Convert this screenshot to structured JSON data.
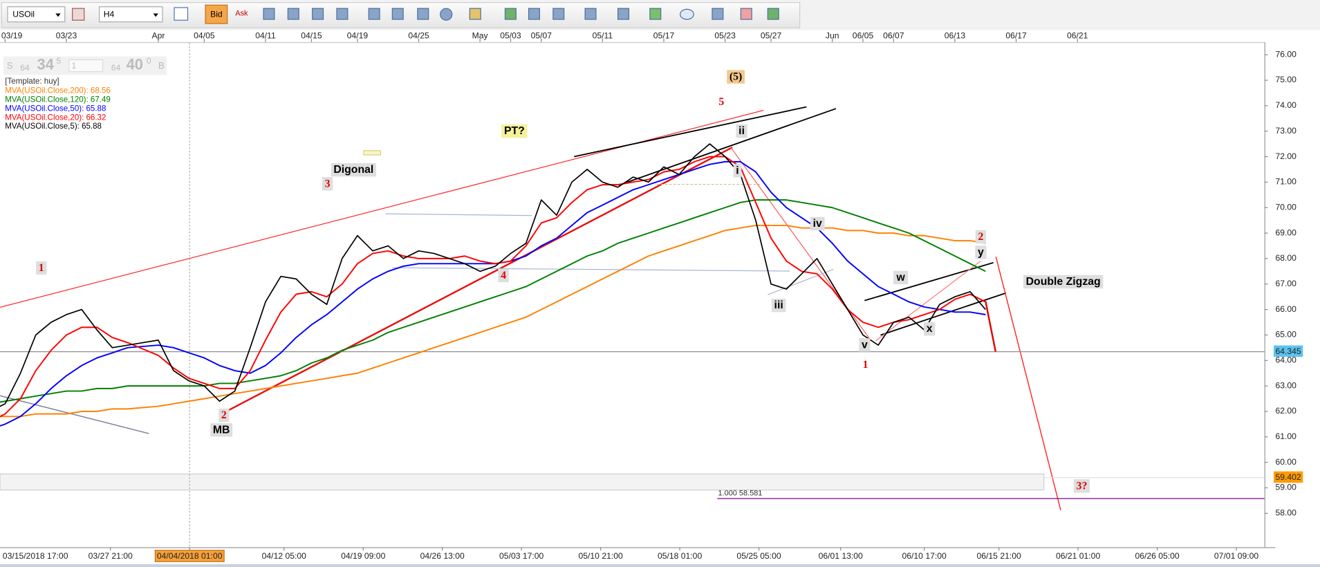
{
  "toolbar": {
    "symbol": "USOil",
    "timeframe": "H4",
    "bid": "Bid",
    "ask": "Ask"
  },
  "quote": {
    "sell_label": "S",
    "sell_big": "64",
    "sell_pips": "34",
    "sell_frac": "5",
    "amount": "1",
    "buy_big": "64",
    "buy_pips": "40",
    "buy_frac": "0",
    "buy_label": "B"
  },
  "chart_data": {
    "type": "line",
    "template": "[Template: huy]",
    "x": [
      "2018-03-16",
      "2018-03-19",
      "2018-03-20",
      "2018-03-21",
      "2018-03-22",
      "2018-03-23",
      "2018-03-26",
      "2018-03-27",
      "2018-03-28",
      "2018-03-29",
      "2018-04-02",
      "2018-04-03",
      "2018-04-04",
      "2018-04-05",
      "2018-04-06",
      "2018-04-09",
      "2018-04-10",
      "2018-04-11",
      "2018-04-12",
      "2018-04-13",
      "2018-04-16",
      "2018-04-17",
      "2018-04-18",
      "2018-04-19",
      "2018-04-20",
      "2018-04-23",
      "2018-04-24",
      "2018-04-25",
      "2018-04-26",
      "2018-04-27",
      "2018-04-30",
      "2018-05-01",
      "2018-05-02",
      "2018-05-03",
      "2018-05-04",
      "2018-05-07",
      "2018-05-08",
      "2018-05-09",
      "2018-05-10",
      "2018-05-11",
      "2018-05-14",
      "2018-05-15",
      "2018-05-16",
      "2018-05-17",
      "2018-05-18",
      "2018-05-21",
      "2018-05-22",
      "2018-05-23",
      "2018-05-24",
      "2018-05-25",
      "2018-05-28",
      "2018-05-29",
      "2018-05-30",
      "2018-05-31",
      "2018-06-01",
      "2018-06-04",
      "2018-06-05",
      "2018-06-06",
      "2018-06-07",
      "2018-06-08",
      "2018-06-11",
      "2018-06-12",
      "2018-06-13",
      "2018-06-14",
      "2018-06-15"
    ],
    "series": [
      {
        "name": "MVA(USOil.Close,200): 68.56",
        "color": "#ff8000",
        "values": [
          61.8,
          61.8,
          61.8,
          61.9,
          61.9,
          61.9,
          62.0,
          62.0,
          62.1,
          62.1,
          62.2,
          62.3,
          62.4,
          62.5,
          62.6,
          62.7,
          62.8,
          62.9,
          63.0,
          63.1,
          63.2,
          63.3,
          63.4,
          63.5,
          63.7,
          63.9,
          64.1,
          64.3,
          64.5,
          64.7,
          64.9,
          65.1,
          65.3,
          65.5,
          65.7,
          66.0,
          66.3,
          66.6,
          66.9,
          67.2,
          67.5,
          67.8,
          68.1,
          68.3,
          68.5,
          68.7,
          68.9,
          69.1,
          69.2,
          69.3,
          69.3,
          69.3,
          69.2,
          69.2,
          69.2,
          69.1,
          69.1,
          69.0,
          69.0,
          68.9,
          68.9,
          68.8,
          68.7,
          68.7,
          68.6
        ]
      },
      {
        "name": "MVA(USOil.Close,120): 67.49",
        "color": "#008000",
        "values": [
          62.3,
          62.4,
          62.5,
          62.6,
          62.7,
          62.8,
          62.8,
          62.9,
          62.9,
          63.0,
          63.0,
          63.0,
          63.0,
          63.0,
          63.1,
          63.1,
          63.2,
          63.3,
          63.4,
          63.6,
          63.9,
          64.1,
          64.4,
          64.6,
          64.8,
          65.1,
          65.3,
          65.5,
          65.7,
          65.9,
          66.1,
          66.3,
          66.5,
          66.7,
          66.9,
          67.2,
          67.5,
          67.8,
          68.1,
          68.3,
          68.6,
          68.8,
          69.0,
          69.2,
          69.4,
          69.6,
          69.8,
          70.0,
          70.2,
          70.3,
          70.3,
          70.3,
          70.2,
          70.1,
          70.0,
          69.8,
          69.6,
          69.4,
          69.2,
          69.0,
          68.7,
          68.4,
          68.1,
          67.8,
          67.5
        ]
      },
      {
        "name": "MVA(USOil.Close,50): 65.88",
        "color": "#0000ff",
        "values": [
          61.3,
          61.5,
          61.8,
          62.3,
          62.9,
          63.4,
          63.8,
          64.1,
          64.3,
          64.5,
          64.6,
          64.5,
          64.3,
          64.1,
          63.8,
          63.6,
          63.5,
          63.8,
          64.3,
          64.9,
          65.4,
          65.8,
          66.3,
          66.8,
          67.2,
          67.5,
          67.7,
          67.8,
          67.8,
          67.8,
          67.8,
          67.8,
          67.8,
          67.9,
          68.1,
          68.5,
          68.8,
          69.3,
          69.8,
          70.1,
          70.4,
          70.7,
          70.9,
          71.1,
          71.3,
          71.5,
          71.7,
          71.8,
          71.8,
          71.4,
          70.6,
          70.0,
          69.6,
          69.2,
          68.6,
          67.9,
          67.4,
          66.9,
          66.6,
          66.3,
          66.1,
          66.0,
          65.9,
          65.9,
          65.8
        ]
      },
      {
        "name": "MVA(USOil.Close,20): 66.32",
        "color": "#ff0000",
        "values": [
          61.6,
          61.9,
          62.5,
          63.6,
          64.4,
          65.0,
          65.3,
          65.3,
          64.9,
          64.7,
          64.2,
          63.7,
          63.3,
          63.1,
          62.9,
          62.9,
          63.6,
          64.8,
          65.9,
          66.6,
          66.7,
          66.5,
          67.0,
          67.8,
          68.2,
          68.3,
          68.1,
          68.0,
          68.0,
          68.0,
          68.1,
          67.9,
          67.8,
          67.9,
          68.5,
          69.4,
          69.6,
          70.2,
          70.7,
          70.9,
          70.9,
          71.0,
          71.1,
          71.4,
          71.5,
          71.8,
          72.0,
          72.0,
          71.6,
          70.2,
          68.8,
          67.9,
          67.5,
          67.4,
          66.8,
          66.0,
          65.5,
          65.3,
          65.5,
          65.6,
          65.8,
          66.0,
          66.4,
          66.6,
          66.3
        ]
      },
      {
        "name": "MVA(USOil.Close,5): 65.88",
        "color": "#000000",
        "values": [
          62.0,
          62.3,
          63.5,
          65.0,
          65.5,
          65.8,
          66.0,
          65.2,
          64.5,
          64.6,
          64.8,
          63.6,
          63.2,
          63.0,
          62.4,
          62.8,
          64.5,
          66.3,
          67.3,
          67.2,
          66.6,
          66.2,
          68.0,
          68.9,
          68.3,
          68.5,
          68.0,
          68.3,
          68.2,
          68.0,
          67.8,
          67.5,
          67.7,
          68.2,
          68.6,
          70.3,
          69.7,
          71.0,
          71.5,
          71.0,
          70.8,
          71.2,
          71.0,
          71.6,
          71.3,
          72.0,
          72.5,
          72.0,
          71.3,
          69.5,
          67.0,
          66.8,
          67.4,
          68.0,
          67.0,
          66.0,
          65.0,
          64.6,
          65.5,
          65.7,
          65.2,
          66.2,
          66.5,
          66.7,
          66.0
        ]
      }
    ],
    "xlim": [
      "2018-03-16 16:00",
      "2018-07-03 05:00"
    ],
    "xticks": [
      {
        "value": "2018-03-15 17:00",
        "label": "03/15/2018 17:00"
      },
      {
        "value": "2018-03-27 21:00",
        "label": "03/27 21:00"
      },
      {
        "value": "2018-04-04 01:00",
        "label": "04/04/2018 01:00"
      },
      {
        "value": "2018-04-12 05:00",
        "label": "04/12 05:00"
      },
      {
        "value": "2018-04-19 09:00",
        "label": "04/19 09:00"
      },
      {
        "value": "2018-04-26 13:00",
        "label": "04/26 13:00"
      },
      {
        "value": "2018-05-03 17:00",
        "label": "05/03 17:00"
      },
      {
        "value": "2018-05-10 21:00",
        "label": "05/10 21:00"
      },
      {
        "value": "2018-05-18 01:00",
        "label": "05/18 01:00"
      },
      {
        "value": "2018-05-25 05:00",
        "label": "05/25 05:00"
      },
      {
        "value": "2018-06-01 13:00",
        "label": "06/01 13:00"
      },
      {
        "value": "2018-06-10 17:00",
        "label": "06/10 17:00"
      },
      {
        "value": "2018-06-15 21:00",
        "label": "06/15 21:00"
      },
      {
        "value": "2018-06-21 01:00",
        "label": "06/21 01:00"
      },
      {
        "value": "2018-06-26 05:00",
        "label": "06/26 05:00"
      },
      {
        "value": "2018-07-01 09:00",
        "label": "07/01 09:00"
      }
    ],
    "xticks_top": [
      {
        "value": "2018-03-19",
        "label": "03/19"
      },
      {
        "value": "2018-03-23",
        "label": "03/23"
      },
      {
        "value": "2018-04-01",
        "label": "Apr"
      },
      {
        "value": "2018-04-05",
        "label": "04/05"
      },
      {
        "value": "2018-04-11",
        "label": "04/11"
      },
      {
        "value": "2018-04-15",
        "label": "04/15"
      },
      {
        "value": "2018-04-19",
        "label": "04/19"
      },
      {
        "value": "2018-04-25",
        "label": "04/25"
      },
      {
        "value": "2018-05-01",
        "label": "May"
      },
      {
        "value": "2018-05-03",
        "label": "05/03"
      },
      {
        "value": "2018-05-07",
        "label": "05/07"
      },
      {
        "value": "2018-05-11",
        "label": "05/11"
      },
      {
        "value": "2018-05-17",
        "label": "05/17"
      },
      {
        "value": "2018-05-23",
        "label": "05/23"
      },
      {
        "value": "2018-05-27",
        "label": "05/27"
      },
      {
        "value": "2018-06-01",
        "label": "Jun"
      },
      {
        "value": "2018-06-05",
        "label": "06/05"
      },
      {
        "value": "2018-06-07",
        "label": "06/07"
      },
      {
        "value": "2018-06-13",
        "label": "06/13"
      },
      {
        "value": "2018-06-17",
        "label": "06/17"
      },
      {
        "value": "2018-06-21",
        "label": "06/21"
      }
    ],
    "crosshair_x": "2018-04-04 01:00",
    "ylim": [
      57,
      76.1
    ],
    "yticks": [
      {
        "value": 58,
        "label": "58.00"
      },
      {
        "value": 59,
        "label": "59.00"
      },
      {
        "value": 60,
        "label": "60.00"
      },
      {
        "value": 61,
        "label": "61.00"
      },
      {
        "value": 62,
        "label": "62.00"
      },
      {
        "value": 63,
        "label": "63.00"
      },
      {
        "value": 64,
        "label": "64.00"
      },
      {
        "value": 65,
        "label": "65.00"
      },
      {
        "value": 66,
        "label": "66.00"
      },
      {
        "value": 67,
        "label": "67.00"
      },
      {
        "value": 68,
        "label": "68.00"
      },
      {
        "value": 69,
        "label": "69.00"
      },
      {
        "value": 70,
        "label": "70.00"
      },
      {
        "value": 71,
        "label": "71.00"
      },
      {
        "value": 72,
        "label": "72.00"
      },
      {
        "value": 73,
        "label": "73.00"
      },
      {
        "value": 74,
        "label": "74.00"
      },
      {
        "value": 75,
        "label": "75.00"
      },
      {
        "value": 76,
        "label": "76.00"
      }
    ],
    "current_price": 64.345,
    "current_price_color": "#5cc3ee",
    "level": 59.402,
    "level_color": "#ff9c00",
    "fib": {
      "label": "1.000 58.581",
      "value": 58.581,
      "color": "#800080"
    },
    "annotations": [
      {
        "text": "1",
        "color": "#e00000",
        "background": "#dedede"
      },
      {
        "text": "2",
        "color": "#e00000",
        "background": "#dedede"
      },
      {
        "text": "MB",
        "color": "#000000",
        "background": "#dedede"
      },
      {
        "text": "3",
        "color": "#e00000",
        "background": "#dedede"
      },
      {
        "text": "Digonal",
        "color": "#000000",
        "background": "#dedede"
      },
      {
        "text": "PT?",
        "color": "#000000",
        "background": "#f3f19a"
      },
      {
        "text": "4",
        "color": "#e00000",
        "background": "#dedede"
      },
      {
        "text": "5",
        "color": "#e00000",
        "background": "#ffffff"
      },
      {
        "text": "(5)",
        "color": "#000000",
        "background": "#f2c98c"
      },
      {
        "text": "ii",
        "color": "#000000",
        "background": "#dedede"
      },
      {
        "text": "i",
        "color": "#000000",
        "background": "#dedede"
      },
      {
        "text": "iii",
        "color": "#000000",
        "background": "#dedede"
      },
      {
        "text": "iv",
        "color": "#000000",
        "background": "#dedede"
      },
      {
        "text": "v",
        "color": "#000000",
        "background": "#dedede"
      },
      {
        "text": "1",
        "color": "#e00000",
        "background": "#ffffff"
      },
      {
        "text": "w",
        "color": "#000000",
        "background": "#dedede"
      },
      {
        "text": "x",
        "color": "#000000",
        "background": "#dedede"
      },
      {
        "text": "2",
        "color": "#e00000",
        "background": "#dedede"
      },
      {
        "text": "y",
        "color": "#000000",
        "background": "#dedede"
      },
      {
        "text": "Double Zigzag",
        "color": "#000000",
        "background": "#dedede"
      },
      {
        "text": "3?",
        "color": "#e00000",
        "background": "#dedede"
      }
    ]
  }
}
